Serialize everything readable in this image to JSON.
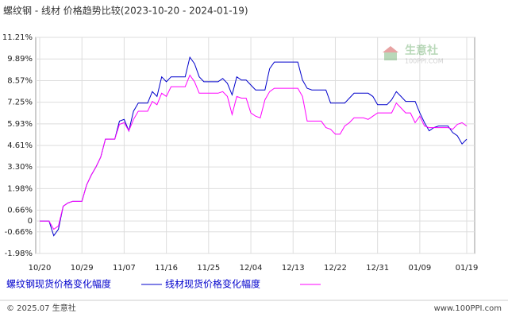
{
  "chart_data": {
    "type": "line",
    "title": "螺纹钢 - 线材 价格趋势比较(2023-10-20 - 2024-01-19)",
    "watermark": "生意社",
    "watermark_sub": "100PPI.COM",
    "footer_left": "© 2025.07 生意社",
    "footer_right": "www.100PPI.com",
    "grid": true,
    "ylim": [
      -1.98,
      11.21
    ],
    "yticks": [
      {
        "value": 11.21,
        "label": "11.21%"
      },
      {
        "value": 9.89,
        "label": "9.89%"
      },
      {
        "value": 8.57,
        "label": "8.57%"
      },
      {
        "value": 7.25,
        "label": "7.25%"
      },
      {
        "value": 5.93,
        "label": "5.93%"
      },
      {
        "value": 4.61,
        "label": "4.61%"
      },
      {
        "value": 3.3,
        "label": "3.30%"
      },
      {
        "value": 1.98,
        "label": "1.98%"
      },
      {
        "value": 0.66,
        "label": "0.66%"
      },
      0,
      {
        "value": -0.66,
        "label": "-0.66%"
      },
      {
        "value": -1.98,
        "label": "-1.98%"
      }
    ],
    "categories": [
      "10/20",
      null,
      null,
      null,
      null,
      null,
      null,
      null,
      null,
      "10/29",
      null,
      null,
      null,
      null,
      null,
      null,
      null,
      null,
      "11/07",
      null,
      null,
      null,
      null,
      null,
      null,
      null,
      null,
      "11/16",
      null,
      null,
      null,
      null,
      null,
      null,
      null,
      null,
      "11/25",
      null,
      null,
      null,
      null,
      null,
      null,
      null,
      null,
      "12/04",
      null,
      null,
      null,
      null,
      null,
      null,
      null,
      null,
      "12/13",
      null,
      null,
      null,
      null,
      null,
      null,
      null,
      null,
      "12/22",
      null,
      null,
      null,
      null,
      null,
      null,
      null,
      null,
      "12/31",
      null,
      null,
      null,
      null,
      null,
      null,
      null,
      null,
      "01/09",
      null,
      null,
      null,
      null,
      null,
      null,
      null,
      null,
      null,
      "01/19"
    ],
    "series": [
      {
        "name": "螺纹钢现货价格变化幅度",
        "color": "#0000cc",
        "values": [
          0,
          0,
          0,
          -0.9,
          -0.5,
          0.9,
          1.1,
          1.2,
          1.2,
          1.2,
          2.2,
          2.8,
          3.3,
          3.9,
          5.0,
          5.0,
          5.0,
          6.1,
          6.2,
          5.5,
          6.7,
          7.2,
          7.2,
          7.2,
          7.9,
          7.6,
          8.8,
          8.5,
          8.8,
          8.8,
          8.8,
          8.8,
          10.0,
          9.6,
          8.8,
          8.5,
          8.5,
          8.5,
          8.5,
          8.7,
          8.4,
          7.7,
          8.8,
          8.6,
          8.6,
          8.3,
          8.0,
          8.0,
          8.0,
          9.3,
          9.7,
          9.7,
          9.7,
          9.7,
          9.7,
          9.7,
          8.6,
          8.1,
          8.0,
          8.0,
          8.0,
          8.0,
          7.2,
          7.2,
          7.2,
          7.2,
          7.5,
          7.8,
          7.8,
          7.8,
          7.8,
          7.6,
          7.1,
          7.1,
          7.1,
          7.4,
          7.9,
          7.6,
          7.3,
          7.3,
          7.3,
          6.6,
          6.0,
          5.5,
          5.7,
          5.8,
          5.8,
          5.8,
          5.4,
          5.2,
          4.7,
          5.0
        ]
      },
      {
        "name": "线材现货价格变化幅度",
        "color": "#ff00ff",
        "values": [
          0,
          0,
          0,
          -0.5,
          -0.3,
          0.9,
          1.1,
          1.2,
          1.2,
          1.2,
          2.2,
          2.8,
          3.3,
          3.9,
          5.0,
          5.0,
          5.0,
          5.9,
          6.0,
          5.5,
          6.2,
          6.7,
          6.7,
          6.7,
          7.3,
          7.1,
          7.8,
          7.6,
          8.2,
          8.2,
          8.2,
          8.2,
          8.9,
          8.5,
          7.8,
          7.8,
          7.8,
          7.8,
          7.8,
          7.9,
          7.6,
          6.5,
          7.6,
          7.5,
          7.5,
          6.6,
          6.4,
          6.3,
          7.4,
          7.9,
          8.1,
          8.1,
          8.1,
          8.1,
          8.1,
          8.1,
          7.6,
          6.1,
          6.1,
          6.1,
          6.1,
          5.7,
          5.6,
          5.3,
          5.3,
          5.8,
          6.0,
          6.3,
          6.3,
          6.3,
          6.2,
          6.4,
          6.6,
          6.6,
          6.6,
          6.6,
          7.2,
          6.9,
          6.6,
          6.6,
          6.0,
          6.4,
          5.8,
          5.7,
          5.7,
          5.7,
          5.7,
          5.7,
          5.6,
          5.9,
          6.0,
          5.8
        ]
      }
    ]
  }
}
